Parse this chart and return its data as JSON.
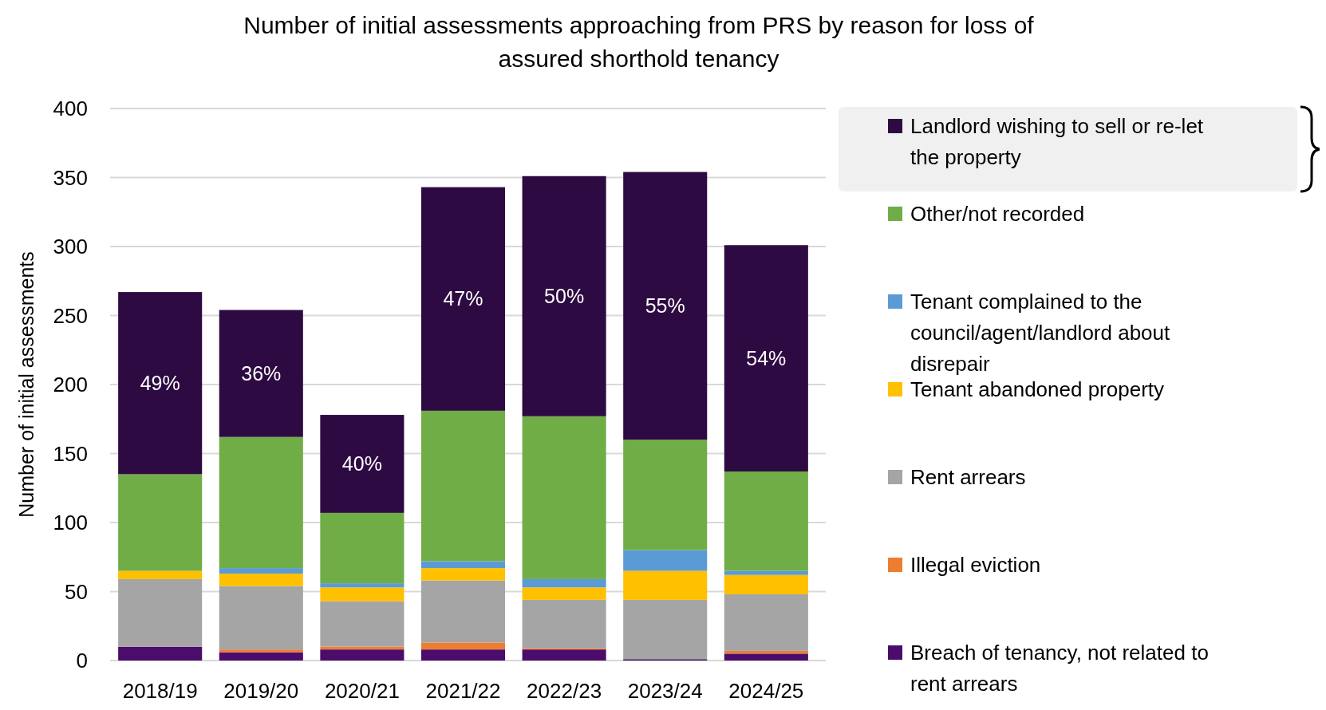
{
  "chart_data": {
    "type": "bar",
    "title": "Number of initial assessments approaching from PRS by reason for loss of assured shorthold tenancy",
    "ylabel": "Number of initial assessments",
    "categories": [
      "2018/19",
      "2019/20",
      "2020/21",
      "2021/22",
      "2022/23",
      "2023/24",
      "2024/25"
    ],
    "stacked": true,
    "ylim": [
      0,
      400
    ],
    "yticks": [
      0,
      50,
      100,
      150,
      200,
      250,
      300,
      350,
      400
    ],
    "grid": "y",
    "legend": "right",
    "series": [
      {
        "name": "Breach of tenancy, not related to rent arrears",
        "color": "#4b0c6b",
        "values": [
          10,
          6,
          8,
          8,
          8,
          1,
          5
        ]
      },
      {
        "name": "Illegal eviction",
        "color": "#ed7d31",
        "values": [
          0,
          2,
          2,
          5,
          1,
          0,
          2
        ]
      },
      {
        "name": "Rent arrears",
        "color": "#a5a5a5",
        "values": [
          49,
          46,
          33,
          45,
          35,
          43,
          41
        ]
      },
      {
        "name": "Tenant abandoned property",
        "color": "#ffc000",
        "values": [
          6,
          9,
          10,
          9,
          9,
          21,
          14
        ]
      },
      {
        "name": "Tenant complained to the council/agent/landlord about disrepair",
        "color": "#5b9bd5",
        "values": [
          0,
          4,
          3,
          5,
          6,
          15,
          3
        ]
      },
      {
        "name": "Other/not recorded",
        "color": "#70ad47",
        "values": [
          70,
          95,
          51,
          109,
          118,
          80,
          72
        ]
      },
      {
        "name": "Landlord wishing to sell or re-let the property",
        "color": "#2e0a42",
        "values": [
          132,
          92,
          71,
          162,
          174,
          194,
          164
        ]
      }
    ],
    "annotations": [
      "49%",
      "36%",
      "40%",
      "47%",
      "50%",
      "55%",
      "54%"
    ]
  }
}
